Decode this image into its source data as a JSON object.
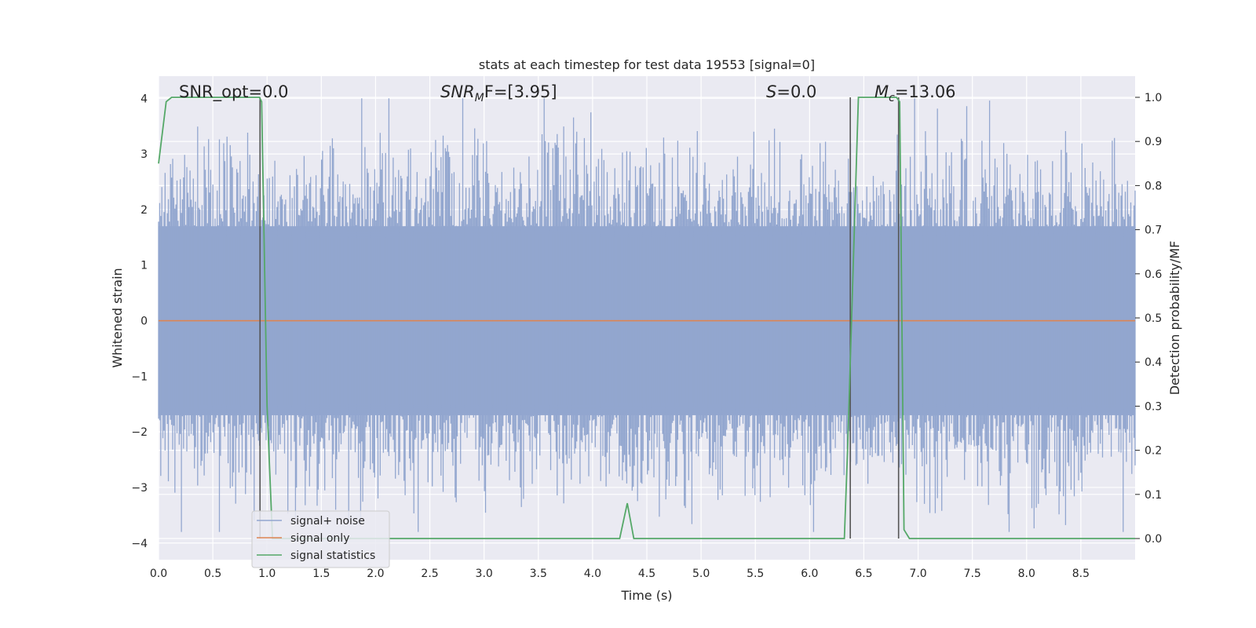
{
  "chart_data": {
    "type": "line",
    "title": "stats at each timestep for test data 19553 [signal=0]",
    "xlabel": "Time (s)",
    "ylabel": "Whitened strain",
    "ylabel_right": "Detection probability/MF",
    "xlim": [
      0,
      9.0
    ],
    "ylim": [
      -4.3,
      4.4
    ],
    "ylim_right": [
      -0.048,
      1.048
    ],
    "x_ticks": [
      "0.0",
      "0.5",
      "1.0",
      "1.5",
      "2.0",
      "2.5",
      "3.0",
      "3.5",
      "4.0",
      "4.5",
      "5.0",
      "5.5",
      "6.0",
      "6.5",
      "7.0",
      "7.5",
      "8.0",
      "8.5"
    ],
    "y_ticks": [
      "4",
      "3",
      "2",
      "1",
      "0",
      "−1",
      "−2",
      "−3",
      "−4"
    ],
    "y_ticks_right": [
      "1.0",
      "0.9",
      "0.8",
      "0.7",
      "0.6",
      "0.5",
      "0.4",
      "0.3",
      "0.2",
      "0.1",
      "0.0"
    ],
    "grid": true,
    "legend_placement": "lower-left",
    "annotations": {
      "snr_opt": "SNR_opt=0.0",
      "snr_mf_main": "SNR",
      "snr_mf_sub": "M",
      "snr_mf_rest": "F=[3.95]",
      "s_main": "S",
      "s_rest": "=0.0",
      "mc_main": "M",
      "mc_sub": "c",
      "mc_rest": "=13.06"
    },
    "series": [
      {
        "name": "signal+ noise",
        "color": "#92a6cf",
        "description_values": "noise, roughly ±1.7 dense band with peaks up to ±4"
      },
      {
        "name": "signal only",
        "color": "#dd8452",
        "x": [
          0,
          9.0
        ],
        "y": [
          0,
          0
        ]
      },
      {
        "name": "signal statistics",
        "color": "#55a868",
        "axis": "right",
        "x": [
          0.0,
          0.07,
          0.12,
          0.93,
          0.95,
          1.0,
          1.05,
          4.25,
          4.32,
          4.38,
          6.32,
          6.35,
          6.45,
          6.8,
          6.83,
          6.87,
          6.92,
          9.0
        ],
        "y": [
          0.85,
          0.99,
          1.0,
          1.0,
          0.99,
          0.3,
          0.0,
          0.0,
          0.08,
          0.0,
          0.0,
          0.2,
          1.0,
          1.0,
          0.99,
          0.02,
          0.0,
          0.0
        ]
      }
    ],
    "vertical_lines": [
      {
        "x": 0.935,
        "color": "#555555"
      },
      {
        "x": 6.375,
        "color": "#555555"
      },
      {
        "x": 6.82,
        "color": "#555555"
      }
    ]
  }
}
